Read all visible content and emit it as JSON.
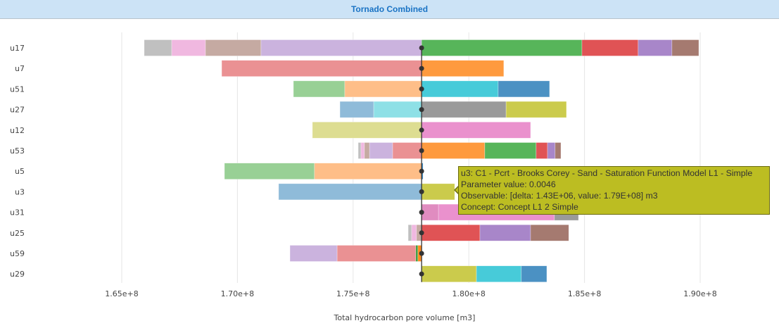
{
  "header": {
    "title": "Tornado Combined"
  },
  "tooltip": {
    "lines": [
      "u3: C1 - Pcrt - Brooks Corey - Sand - Saturation Function Model L1 - Simple",
      "Parameter value: 0.0046",
      "Observable: [delta: 1.43E+06, value: 1.79E+08] m3",
      "Concept: Concept L1 2 Simple"
    ]
  },
  "chart_data": {
    "type": "bar",
    "orientation": "horizontal",
    "title": "Tornado Combined",
    "xlabel": "Total hydrocarbon pore volume [m3]",
    "ylabel": "",
    "base_value": 177960000,
    "xlim": [
      163700000,
      193500000
    ],
    "xticks": [
      165000000,
      170000000,
      175000000,
      180000000,
      185000000,
      190000000
    ],
    "xtick_labels": [
      "1.65e+8",
      "1.70e+8",
      "1.75e+8",
      "1.80e+8",
      "1.85e+8",
      "1.90e+8"
    ],
    "grid": true,
    "categories": [
      "u17",
      "u7",
      "u51",
      "u27",
      "u12",
      "u53",
      "u5",
      "u3",
      "u31",
      "u25",
      "u59",
      "u29"
    ],
    "rows": [
      {
        "name": "u17",
        "segments": [
          {
            "from": 165970000.0,
            "to": 167160000.0,
            "color": "#c0c0c0"
          },
          {
            "from": 167160000.0,
            "to": 168620000.0,
            "color": "#f0b8e0"
          },
          {
            "from": 168620000.0,
            "to": 171020000.0,
            "color": "#c5aaa2"
          },
          {
            "from": 171020000.0,
            "to": 177960000.0,
            "color": "#cbb3de"
          },
          {
            "from": 177960000.0,
            "to": 184890000.0,
            "color": "#57b55a"
          },
          {
            "from": 184890000.0,
            "to": 187320000.0,
            "color": "#e05355"
          },
          {
            "from": 187320000.0,
            "to": 188780000.0,
            "color": "#a886c9"
          },
          {
            "from": 188780000.0,
            "to": 189940000.0,
            "color": "#a57a70"
          }
        ]
      },
      {
        "name": "u7",
        "segments": [
          {
            "from": 169320000.0,
            "to": 177960000.0,
            "color": "#ea9193"
          },
          {
            "from": 177960000.0,
            "to": 181510000.0,
            "color": "#fe9a3e"
          }
        ]
      },
      {
        "name": "u51",
        "segments": [
          {
            "from": 172420000.0,
            "to": 174640000.0,
            "color": "#98d095"
          },
          {
            "from": 174640000.0,
            "to": 177960000.0,
            "color": "#febe88"
          },
          {
            "from": 177960000.0,
            "to": 181270000.0,
            "color": "#47cbd9"
          },
          {
            "from": 181270000.0,
            "to": 183490000.0,
            "color": "#4b91c3"
          }
        ]
      },
      {
        "name": "u27",
        "segments": [
          {
            "from": 174430000.0,
            "to": 175890000.0,
            "color": "#8fbbd9"
          },
          {
            "from": 175890000.0,
            "to": 177960000.0,
            "color": "#8ee0e6"
          },
          {
            "from": 177960000.0,
            "to": 181610000.0,
            "color": "#9a9a9a"
          },
          {
            "from": 181610000.0,
            "to": 184220000.0,
            "color": "#cbcb4c"
          }
        ]
      },
      {
        "name": "u12",
        "segments": [
          {
            "from": 173240000.0,
            "to": 177960000.0,
            "color": "#dddd91"
          },
          {
            "from": 177960000.0,
            "to": 182670000.0,
            "color": "#ea91cd"
          }
        ]
      },
      {
        "name": "u53",
        "segments": [
          {
            "from": 175220000.0,
            "to": 175340000.0,
            "color": "#c0c0c0"
          },
          {
            "from": 175340000.0,
            "to": 175490000.0,
            "color": "#f0b8e0"
          },
          {
            "from": 175490000.0,
            "to": 175710000.0,
            "color": "#c5aaa2"
          },
          {
            "from": 175710000.0,
            "to": 176710000.0,
            "color": "#cbb3de"
          },
          {
            "from": 176710000.0,
            "to": 177960000.0,
            "color": "#ea9193"
          },
          {
            "from": 177960000.0,
            "to": 180690000.0,
            "color": "#fe9a3e"
          },
          {
            "from": 180690000.0,
            "to": 182910000.0,
            "color": "#57b55a"
          },
          {
            "from": 182910000.0,
            "to": 183400000.0,
            "color": "#e05355"
          },
          {
            "from": 183400000.0,
            "to": 183730000.0,
            "color": "#a886c9"
          },
          {
            "from": 183730000.0,
            "to": 183980000.0,
            "color": "#a57a70"
          }
        ]
      },
      {
        "name": "u5",
        "segments": [
          {
            "from": 169440000.0,
            "to": 173330000.0,
            "color": "#98d095"
          },
          {
            "from": 173330000.0,
            "to": 177960000.0,
            "color": "#febe88"
          },
          {
            "from": 177960000.0,
            "to": 178020000.0,
            "color": "#2f80bd"
          }
        ]
      },
      {
        "name": "u3",
        "segments": [
          {
            "from": 171780000.0,
            "to": 177960000.0,
            "color": "#8fbbd9"
          },
          {
            "from": 177960000.0,
            "to": 179390000.0,
            "color": "#cbcb4c"
          }
        ]
      },
      {
        "name": "u31",
        "segments": [
          {
            "from": 177960000.0,
            "to": 178690000.0,
            "color": "#e08cc0"
          },
          {
            "from": 178690000.0,
            "to": 183700000.0,
            "color": "#ea91cd"
          },
          {
            "from": 183700000.0,
            "to": 184740000.0,
            "color": "#9a9a9a"
          }
        ]
      },
      {
        "name": "u25",
        "segments": [
          {
            "from": 177380000.0,
            "to": 177530000.0,
            "color": "#c0c0c0"
          },
          {
            "from": 177530000.0,
            "to": 177740000.0,
            "color": "#f0b8e0"
          },
          {
            "from": 177740000.0,
            "to": 177960000.0,
            "color": "#c5aaa2"
          },
          {
            "from": 177960000.0,
            "to": 180480000.0,
            "color": "#e05355"
          },
          {
            "from": 180480000.0,
            "to": 182670000.0,
            "color": "#a886c9"
          },
          {
            "from": 182670000.0,
            "to": 184320000.0,
            "color": "#a57a70"
          }
        ]
      },
      {
        "name": "u59",
        "segments": [
          {
            "from": 172270000.0,
            "to": 174310000.0,
            "color": "#cbb3de"
          },
          {
            "from": 174310000.0,
            "to": 177710000.0,
            "color": "#ea9193"
          },
          {
            "from": 177710000.0,
            "to": 177800000.0,
            "color": "#3a9a3a"
          },
          {
            "from": 177800000.0,
            "to": 177960000.0,
            "color": "#fe8a1e"
          }
        ]
      },
      {
        "name": "u29",
        "segments": [
          {
            "from": 177960000.0,
            "to": 180330000.0,
            "color": "#cbcb4c"
          },
          {
            "from": 180330000.0,
            "to": 182270000.0,
            "color": "#47cbd9"
          },
          {
            "from": 182270000.0,
            "to": 183370000.0,
            "color": "#4b91c3"
          }
        ]
      }
    ]
  }
}
